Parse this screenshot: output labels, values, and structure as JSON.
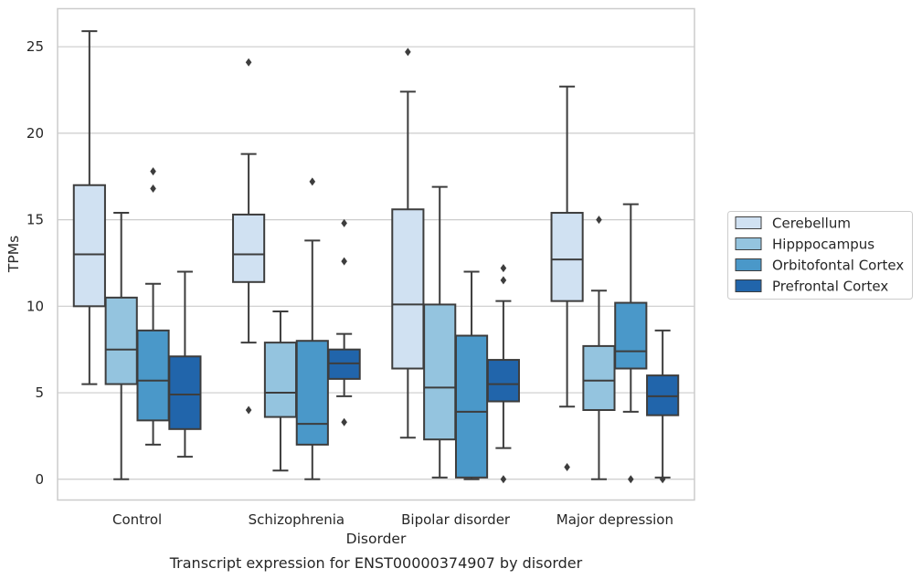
{
  "caption": "Transcript expression for ENST00000374907 by disorder",
  "chart_data": {
    "type": "box",
    "xlabel": "Disorder",
    "ylabel": "TPMs",
    "ylim": [
      -1.2,
      27.2
    ],
    "yticks": [
      0,
      5,
      10,
      15,
      20,
      25
    ],
    "grid": true,
    "legend_position": "right",
    "categories": [
      "Control",
      "Schizophrenia",
      "Bipolar disorder",
      "Major depression"
    ],
    "series": [
      {
        "name": "Cerebellum",
        "color": "#d0e1f2",
        "boxes": [
          {
            "whislo": 5.5,
            "q1": 10.0,
            "med": 13.0,
            "q3": 17.0,
            "whishi": 25.9,
            "fliers": []
          },
          {
            "whislo": 7.9,
            "q1": 11.4,
            "med": 13.0,
            "q3": 15.3,
            "whishi": 18.8,
            "fliers": [
              4.0,
              24.1
            ]
          },
          {
            "whislo": 2.4,
            "q1": 6.4,
            "med": 10.1,
            "q3": 15.6,
            "whishi": 22.4,
            "fliers": [
              24.7
            ]
          },
          {
            "whislo": 4.2,
            "q1": 10.3,
            "med": 12.7,
            "q3": 15.4,
            "whishi": 22.7,
            "fliers": [
              0.7
            ]
          }
        ]
      },
      {
        "name": "Hipppocampus",
        "color": "#94c4df",
        "boxes": [
          {
            "whislo": 0.0,
            "q1": 5.5,
            "med": 7.5,
            "q3": 10.5,
            "whishi": 15.4,
            "fliers": []
          },
          {
            "whislo": 0.5,
            "q1": 3.6,
            "med": 5.0,
            "q3": 7.9,
            "whishi": 9.7,
            "fliers": []
          },
          {
            "whislo": 0.1,
            "q1": 2.3,
            "med": 5.3,
            "q3": 10.1,
            "whishi": 16.9,
            "fliers": []
          },
          {
            "whislo": 0.0,
            "q1": 4.0,
            "med": 5.7,
            "q3": 7.7,
            "whishi": 10.9,
            "fliers": [
              15.0
            ]
          }
        ]
      },
      {
        "name": "Orbitofontal Cortex",
        "color": "#4a98c9",
        "boxes": [
          {
            "whislo": 2.0,
            "q1": 3.4,
            "med": 5.7,
            "q3": 8.6,
            "whishi": 11.3,
            "fliers": [
              16.8,
              17.8
            ]
          },
          {
            "whislo": 0.0,
            "q1": 2.0,
            "med": 3.2,
            "q3": 8.0,
            "whishi": 13.8,
            "fliers": [
              17.2
            ]
          },
          {
            "whislo": 0.0,
            "q1": 0.1,
            "med": 3.9,
            "q3": 8.3,
            "whishi": 12.0,
            "fliers": []
          },
          {
            "whislo": 3.9,
            "q1": 6.4,
            "med": 7.4,
            "q3": 10.2,
            "whishi": 15.9,
            "fliers": [
              0.0
            ]
          }
        ]
      },
      {
        "name": "Prefrontal Cortex",
        "color": "#2165ab",
        "boxes": [
          {
            "whislo": 1.3,
            "q1": 2.9,
            "med": 4.9,
            "q3": 7.1,
            "whishi": 12.0,
            "fliers": []
          },
          {
            "whislo": 4.8,
            "q1": 5.8,
            "med": 6.7,
            "q3": 7.5,
            "whishi": 8.4,
            "fliers": [
              3.3,
              12.6,
              14.8
            ]
          },
          {
            "whislo": 1.8,
            "q1": 4.5,
            "med": 5.5,
            "q3": 6.9,
            "whishi": 10.3,
            "fliers": [
              0.0,
              11.5,
              12.2
            ]
          },
          {
            "whislo": 0.1,
            "q1": 3.7,
            "med": 4.8,
            "q3": 6.0,
            "whishi": 8.6,
            "fliers": [
              0.0
            ]
          }
        ]
      }
    ]
  }
}
